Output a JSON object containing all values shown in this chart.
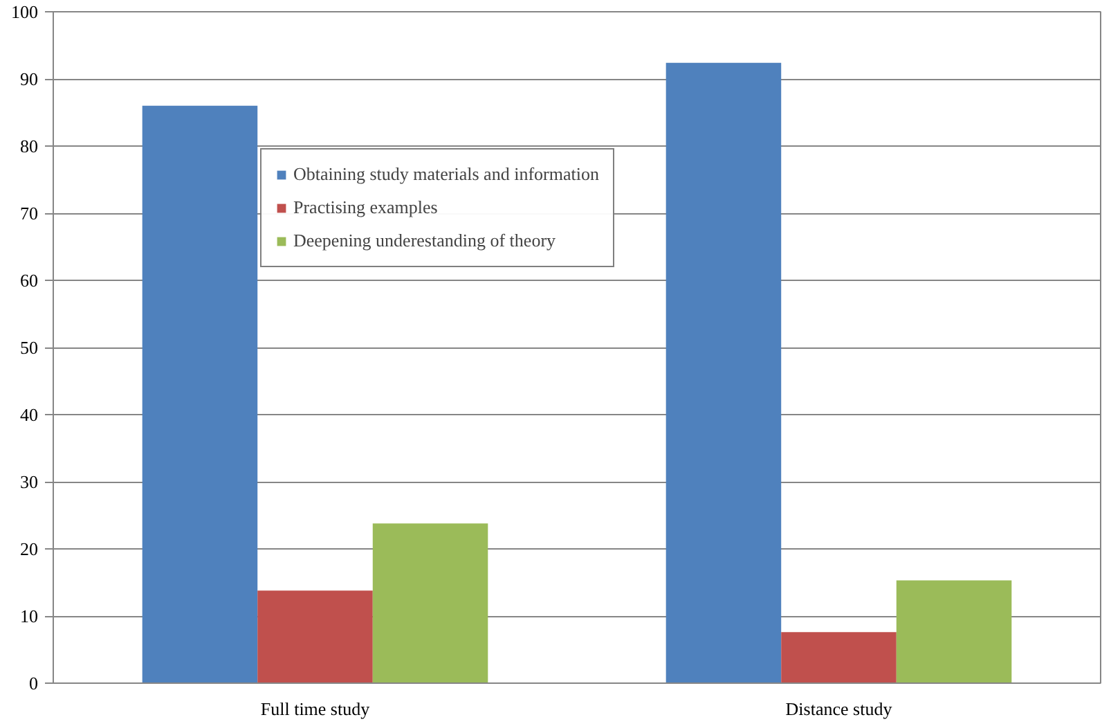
{
  "chart_data": {
    "type": "bar",
    "categories": [
      "Full time study",
      "Distance study"
    ],
    "series": [
      {
        "name": "Obtaining study materials and information",
        "color": "#4f81bd",
        "values": [
          86.0,
          92.4
        ]
      },
      {
        "name": "Practising examples",
        "color": "#c0504d",
        "values": [
          13.8,
          7.6
        ]
      },
      {
        "name": "Deepening underestanding of theory",
        "color": "#9bbb59",
        "values": [
          23.8,
          15.3
        ]
      }
    ],
    "ylim": [
      0,
      100
    ],
    "yticks": [
      0,
      10,
      20,
      30,
      40,
      50,
      60,
      70,
      80,
      90,
      100
    ],
    "grid": "y",
    "legend": "top"
  }
}
